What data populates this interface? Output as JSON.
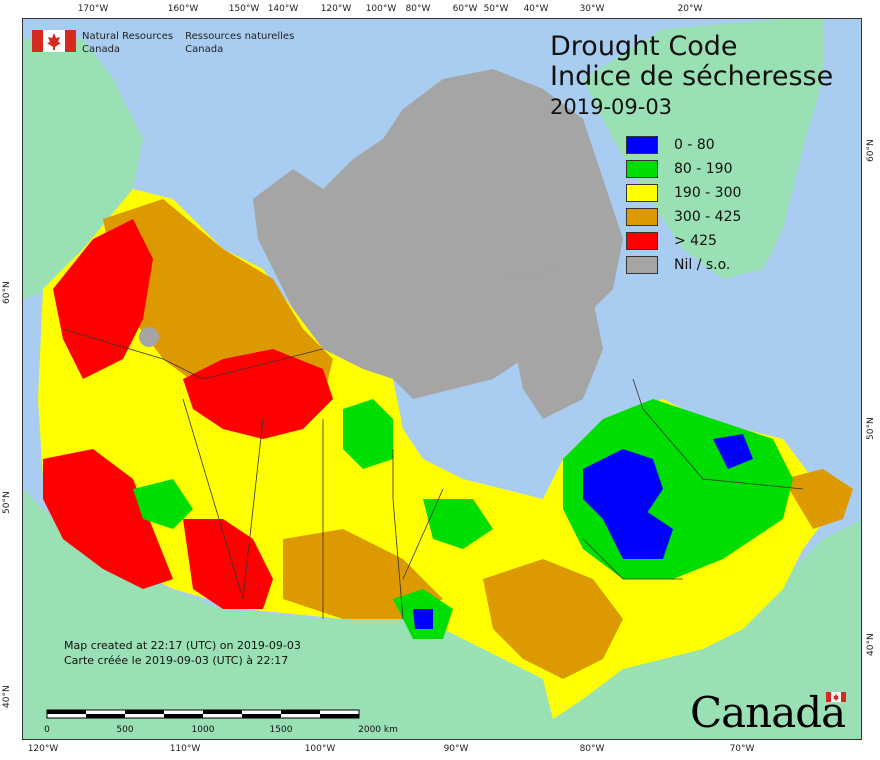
{
  "title": {
    "en": "Drought Code",
    "fr": "Indice de sécheresse",
    "date": "2019-09-03"
  },
  "legend": [
    {
      "label": "0 - 80",
      "color": "#0000ff"
    },
    {
      "label": "80 - 190",
      "color": "#00dd00"
    },
    {
      "label": "190 - 300",
      "color": "#ffff00"
    },
    {
      "label": "300 - 425",
      "color": "#dd9a00"
    },
    {
      "label": "> 425",
      "color": "#ff0000"
    },
    {
      "label": "Nil / s.o.",
      "color": "#a5a5a5"
    }
  ],
  "agency": {
    "en_line1": "Natural Resources",
    "en_line2": "Canada",
    "fr_line1": "Ressources naturelles",
    "fr_line2": "Canada"
  },
  "credits": {
    "en": "Map created at 22:17 (UTC) on 2019-09-03",
    "fr": "Carte créée le 2019-09-03 (UTC) à 22:17"
  },
  "scale_bar": {
    "labels": [
      "0",
      "500",
      "1000",
      "1500",
      "2000 km"
    ]
  },
  "wordmark": "Canada",
  "graticule": {
    "top": [
      "170°W",
      "160°W",
      "150°W",
      "140°W",
      "120°W",
      "100°W",
      "80°W",
      "60°W",
      "50°W",
      "40°W",
      "30°W",
      "20°W"
    ],
    "bottom": [
      "120°W",
      "110°W",
      "100°W",
      "90°W",
      "80°W",
      "70°W"
    ],
    "left": [
      "60°N",
      "50°N",
      "40°N"
    ],
    "right": [
      "60°N",
      "50°N",
      "40°N"
    ]
  },
  "colors": {
    "water": "#a9cdf0",
    "land_outside": "#99e0b4",
    "nil": "#a5a5a5",
    "boundary": "#333333"
  }
}
